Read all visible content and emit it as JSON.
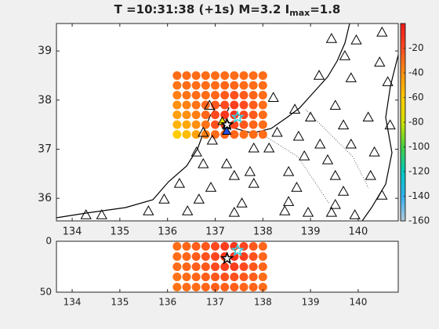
{
  "chart_data": {
    "type": "map",
    "title": "T =10:31:38 (+1s) M=3.2 I",
    "title_subscript": "max",
    "title_suffix": "=1.8",
    "xlim": [
      133.67,
      140.84
    ],
    "ylim": [
      35.54,
      39.56
    ],
    "xticks": [
      134,
      135,
      136,
      137,
      138,
      139,
      140
    ],
    "yticks": [
      36,
      37,
      38,
      39
    ],
    "clim": [
      -160,
      0
    ],
    "cticks": [
      -20,
      -40,
      -60,
      -80,
      -100,
      -120,
      -140,
      -160
    ],
    "colormap": [
      "#b8c8d8",
      "#30b0f0",
      "#00c8c0",
      "#40d040",
      "#d0e000",
      "#ffcc00",
      "#ff9010",
      "#ff4a20",
      "#f01818"
    ],
    "grid": {
      "lons": [
        136.2,
        136.4,
        136.6,
        136.8,
        137.0,
        137.2,
        137.4,
        137.6,
        137.8,
        138.0
      ],
      "lats": [
        38.5,
        38.3,
        38.1,
        37.9,
        37.7,
        37.5,
        37.3
      ],
      "values": [
        [
          -30,
          -30,
          -30,
          -30,
          -30,
          -30,
          -30,
          -30,
          -30,
          -30
        ],
        [
          -32,
          -30,
          -30,
          -30,
          -30,
          -28,
          -28,
          -30,
          -30,
          -30
        ],
        [
          -35,
          -32,
          -30,
          -30,
          -28,
          -25,
          -22,
          -25,
          -28,
          -30
        ],
        [
          -40,
          -36,
          -32,
          -28,
          -24,
          -20,
          -15,
          -20,
          -25,
          -30
        ],
        [
          -45,
          -40,
          -35,
          -28,
          -20,
          -12,
          -10,
          -18,
          -25,
          -30
        ],
        [
          -52,
          -48,
          -40,
          -32,
          -22,
          -15,
          -18,
          -24,
          -28,
          -30
        ],
        [
          -60,
          -55,
          -46,
          -36,
          -30,
          -28,
          -28,
          -30,
          -30,
          -30
        ]
      ]
    },
    "section": {
      "depths": [
        5,
        15,
        25,
        35,
        45
      ],
      "values": [
        [
          -30,
          -28,
          -26,
          -24,
          -20,
          -15,
          -12,
          -18,
          -24,
          -28
        ],
        [
          -30,
          -28,
          -25,
          -22,
          -18,
          -12,
          -10,
          -16,
          -22,
          -28
        ],
        [
          -30,
          -28,
          -26,
          -24,
          -20,
          -16,
          -15,
          -20,
          -24,
          -28
        ],
        [
          -32,
          -30,
          -28,
          -26,
          -24,
          -22,
          -22,
          -24,
          -26,
          -30
        ],
        [
          -32,
          -30,
          -30,
          -28,
          -26,
          -26,
          -26,
          -28,
          -28,
          -30
        ]
      ]
    },
    "stations": {
      "lon": [
        139.44,
        139.96,
        140.5,
        139.72,
        140.45,
        139.18,
        139.85,
        140.62,
        139.52,
        140.21,
        140.67,
        136.88,
        138.22,
        138.67,
        139.0,
        139.69,
        138.3,
        138.75,
        139.2,
        139.85,
        140.34,
        136.75,
        136.94,
        136.61,
        137.24,
        137.81,
        138.13,
        138.87,
        139.36,
        136.75,
        137.73,
        138.54,
        139.52,
        140.26,
        136.25,
        136.91,
        137.81,
        138.71,
        139.69,
        135.93,
        136.66,
        137.56,
        138.54,
        139.52,
        140.5,
        134.29,
        134.62,
        135.6,
        136.42,
        137.4,
        138.46,
        139.44,
        139.93,
        137.4,
        138.95
      ],
      "lat": [
        39.24,
        39.21,
        39.37,
        38.89,
        38.76,
        38.49,
        38.44,
        38.36,
        37.88,
        37.64,
        37.48,
        37.88,
        38.04,
        37.8,
        37.64,
        37.48,
        37.33,
        37.25,
        37.09,
        37.09,
        36.93,
        37.33,
        37.17,
        36.93,
        36.69,
        37.01,
        37.01,
        36.85,
        36.77,
        36.69,
        36.53,
        36.53,
        36.45,
        36.45,
        36.29,
        36.21,
        36.29,
        36.21,
        36.13,
        35.97,
        35.97,
        35.89,
        35.92,
        35.86,
        36.05,
        35.65,
        35.65,
        35.73,
        35.73,
        35.7,
        35.73,
        35.7,
        35.65,
        36.45,
        35.7
      ]
    },
    "triggered": {
      "lon": [
        137.15,
        137.24,
        137.24
      ],
      "lat": [
        37.56,
        37.48,
        37.36
      ],
      "colors": [
        "#e8e000",
        "#20c040",
        "#2050e0"
      ]
    },
    "epicenter": {
      "lon": 137.25,
      "lat": 37.5,
      "depth": 17,
      "color": "#000000"
    },
    "estimate": {
      "lon": 137.47,
      "lat": 37.65,
      "depth": 9,
      "color": "#30d8e8"
    },
    "depth_lim": [
      0,
      50
    ],
    "depth_ticks": [
      0,
      50
    ]
  }
}
